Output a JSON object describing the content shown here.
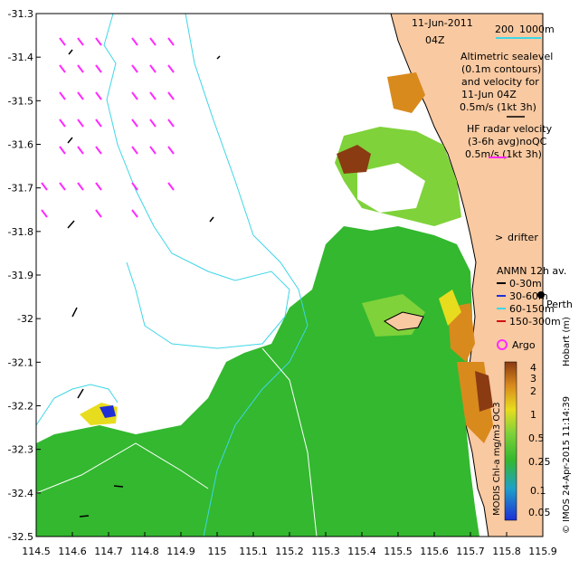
{
  "map": {
    "title_date": "11-Jun-2011",
    "title_time": "04Z",
    "scale_label": "200",
    "scale_unit": "1000m",
    "altimetry_lines": [
      "Altimetric sealevel",
      "(0.1m contours)",
      "and velocity for",
      "11-Jun 04Z",
      "0.5m/s (1kt 3h)"
    ],
    "hf_radar_lines": [
      "HF radar velocity",
      "(3-6h avg)noQC",
      "0.5m/s (1kt 3h)"
    ],
    "drifter_label": "drifter",
    "anmn_title": "ANMN 12h av.",
    "anmn_depths": [
      "0-30m",
      "30-60m",
      "60-150m",
      "150-300m"
    ],
    "perth_label": "Perth",
    "hobart_label": "Hobart (m)",
    "argo_label": "Argo",
    "colorbar_label": "MODIS Chl-a mg/m3 OC3",
    "credit": "© IMOS 24-Apr-2015 11:14:39",
    "colorbar_ticks": [
      "4",
      "3",
      "2",
      "1",
      "0.5",
      "0.25",
      "0.1",
      "0.05"
    ],
    "x_ticks": [
      "114.5",
      "114.6",
      "114.7",
      "114.8",
      "114.9",
      "115",
      "115.1",
      "115.2",
      "115.3",
      "115.4",
      "115.5",
      "115.6",
      "115.7",
      "115.8",
      "115.9"
    ],
    "y_ticks": [
      "-31.3",
      "-31.4",
      "-31.5",
      "-31.6",
      "-31.7",
      "-31.8",
      "-31.9",
      "-32",
      "-32.1",
      "-32.2",
      "-32.3",
      "-32.4",
      "-32.5"
    ],
    "colors": {
      "land": "#f9c9a1",
      "coast": "#000000",
      "contour": "#3fd6e6",
      "hf_radar": "#ff2bff",
      "chl_green": "#33b82f",
      "chl_light": "#7fd23a",
      "chl_yellow": "#e8dc1e",
      "chl_orange": "#d98a1d",
      "chl_brown": "#8a3b12",
      "chl_blue": "#1e2fd6"
    }
  }
}
